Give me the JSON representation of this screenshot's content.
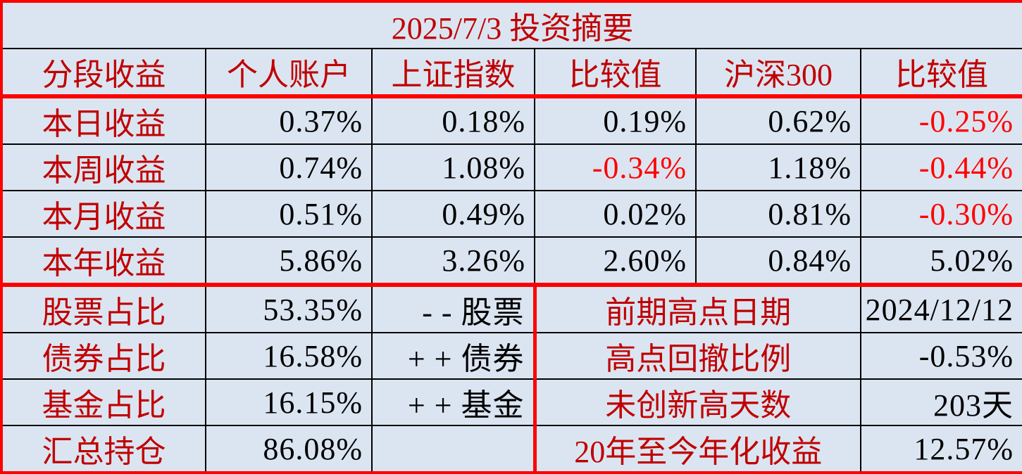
{
  "colors": {
    "background": "#dbe5f1",
    "label_red": "#c00000",
    "negative_red": "#ff0000",
    "value_black": "#000000",
    "border_red": "#ff0000",
    "border_black": "#000000"
  },
  "chart_data": {
    "type": "table",
    "title": "2025/7/3 投资摘要",
    "columns": [
      "分段收益",
      "个人账户",
      "上证指数",
      "比较值",
      "沪深300",
      "比较值"
    ],
    "performance_rows": [
      {
        "label": "本日收益",
        "values": [
          "0.37%",
          "0.18%",
          "0.19%",
          "0.62%",
          "-0.25%"
        ],
        "negative_highlight": [
          false,
          false,
          false,
          false,
          true
        ]
      },
      {
        "label": "本周收益",
        "values": [
          "0.74%",
          "1.08%",
          "-0.34%",
          "1.18%",
          "-0.44%"
        ],
        "negative_highlight": [
          false,
          false,
          true,
          false,
          true
        ]
      },
      {
        "label": "本月收益",
        "values": [
          "0.51%",
          "0.49%",
          "0.02%",
          "0.81%",
          "-0.30%"
        ],
        "negative_highlight": [
          false,
          false,
          false,
          false,
          true
        ]
      },
      {
        "label": "本年收益",
        "values": [
          "5.86%",
          "3.26%",
          "2.60%",
          "0.84%",
          "5.02%"
        ],
        "negative_highlight": [
          false,
          false,
          false,
          false,
          false
        ]
      }
    ],
    "portfolio_rows": [
      {
        "label": "股票占比",
        "value": "53.35%",
        "note": "- - 股票",
        "stat_label": "前期高点日期",
        "stat_value": "2024/12/12"
      },
      {
        "label": "债券占比",
        "value": "16.58%",
        "note": "+ + 债券",
        "stat_label": "高点回撤比例",
        "stat_value": "-0.53%"
      },
      {
        "label": "基金占比",
        "value": "16.15%",
        "note": "+ + 基金",
        "stat_label": "未创新高天数",
        "stat_value": "203天"
      },
      {
        "label": "汇总持仓",
        "value": "86.08%",
        "note": "",
        "stat_label": "20年至今年化收益",
        "stat_value": "12.57%"
      }
    ]
  }
}
